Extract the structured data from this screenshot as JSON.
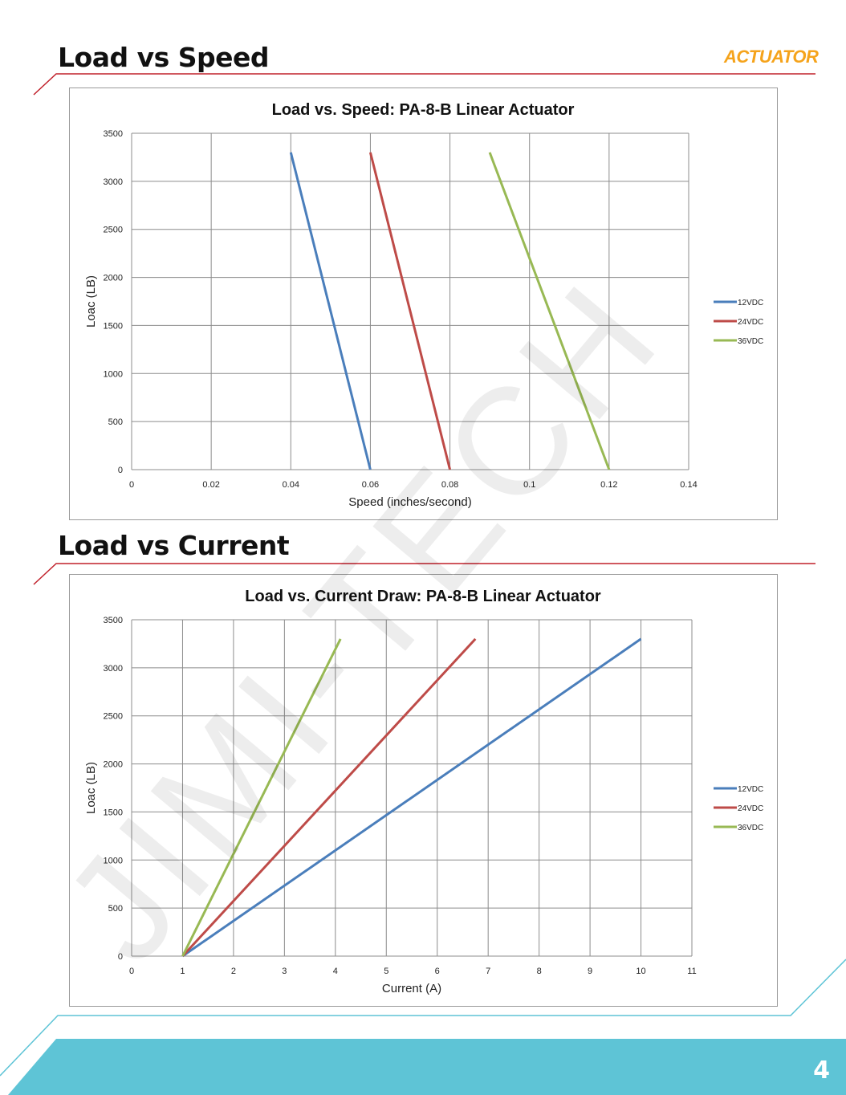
{
  "sections": {
    "speed_title": "Load vs Speed",
    "current_title": "Load vs Current"
  },
  "logo": {
    "text": "ACTUATOR",
    "color": "#f5a31b"
  },
  "page": {
    "number": "4"
  },
  "watermark": {
    "text": "JIMI-TECH"
  },
  "colors": {
    "accent_red": "#c0202a",
    "footer_teal": "#5ec4d6",
    "series_12": "#4a7ebb",
    "series_24": "#be4b48",
    "series_36": "#98b954"
  },
  "chart_data": [
    {
      "type": "line",
      "title": "Load vs. Speed: PA-8-B Linear Actuator",
      "xlabel": "Speed (inches/second)",
      "ylabel": "Loac (LB)",
      "xlim": [
        0,
        0.14
      ],
      "ylim": [
        0,
        3500
      ],
      "xticks": [
        "0",
        "0.02",
        "0.04",
        "0.06",
        "0.08",
        "0.1",
        "0.12",
        "0.14"
      ],
      "yticks": [
        "0",
        "500",
        "1000",
        "1500",
        "2000",
        "2500",
        "3000",
        "3500"
      ],
      "xtick_values": [
        0,
        0.02,
        0.04,
        0.06,
        0.08,
        0.1,
        0.12,
        0.14
      ],
      "ytick_values": [
        0,
        500,
        1000,
        1500,
        2000,
        2500,
        3000,
        3500
      ],
      "grid": true,
      "legend": "right",
      "series": [
        {
          "name": "12VDC",
          "color": "#4a7ebb",
          "points": [
            [
              0.04,
              3300
            ],
            [
              0.06,
              0
            ]
          ]
        },
        {
          "name": "24VDC",
          "color": "#be4b48",
          "points": [
            [
              0.06,
              3300
            ],
            [
              0.08,
              0
            ]
          ]
        },
        {
          "name": "36VDC",
          "color": "#98b954",
          "points": [
            [
              0.09,
              3300
            ],
            [
              0.12,
              0
            ]
          ]
        }
      ]
    },
    {
      "type": "line",
      "title": "Load vs. Current Draw: PA-8-B Linear Actuator",
      "xlabel": "Current (A)",
      "ylabel": "Loac (LB)",
      "xlim": [
        0,
        11
      ],
      "ylim": [
        0,
        3500
      ],
      "xticks": [
        "0",
        "1",
        "2",
        "3",
        "4",
        "5",
        "6",
        "7",
        "8",
        "9",
        "10",
        "11"
      ],
      "yticks": [
        "0",
        "500",
        "1000",
        "1500",
        "2000",
        "2500",
        "3000",
        "3500"
      ],
      "xtick_values": [
        0,
        1,
        2,
        3,
        4,
        5,
        6,
        7,
        8,
        9,
        10,
        11
      ],
      "ytick_values": [
        0,
        500,
        1000,
        1500,
        2000,
        2500,
        3000,
        3500
      ],
      "grid": true,
      "legend": "right",
      "series": [
        {
          "name": "12VDC",
          "color": "#4a7ebb",
          "points": [
            [
              1,
              0
            ],
            [
              10,
              3300
            ]
          ]
        },
        {
          "name": "24VDC",
          "color": "#be4b48",
          "points": [
            [
              1,
              0
            ],
            [
              6.75,
              3300
            ]
          ]
        },
        {
          "name": "36VDC",
          "color": "#98b954",
          "points": [
            [
              1,
              0
            ],
            [
              4.1,
              3300
            ]
          ]
        }
      ]
    }
  ]
}
